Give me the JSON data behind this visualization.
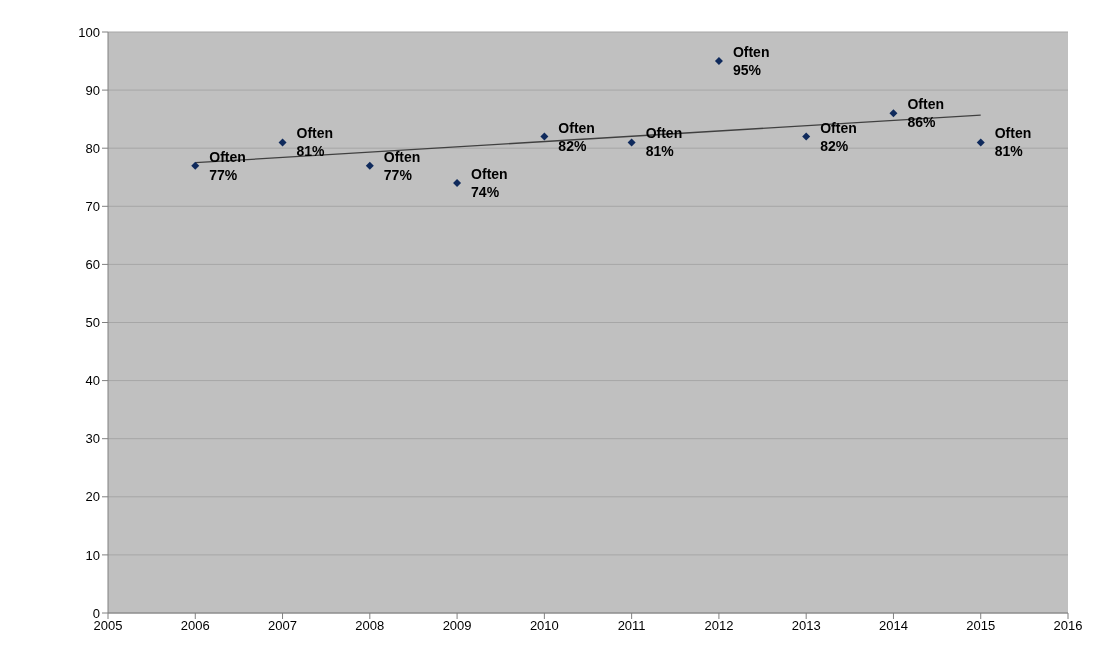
{
  "chart_data": {
    "type": "scatter",
    "x": [
      2006,
      2007,
      2008,
      2009,
      2010,
      2011,
      2012,
      2013,
      2014,
      2015
    ],
    "series": [
      {
        "color": "#0f2a5c",
        "marker": "diamond",
        "values": [
          77,
          81,
          77,
          74,
          82,
          81,
          95,
          82,
          86,
          81
        ],
        "value_labels": [
          "Often\n77%",
          "Often\n81%",
          "Often\n77%",
          "Often\n74%",
          "Often\n82%",
          "Often\n81%",
          "Often\n95%",
          "Often\n82%",
          "Often\n86%",
          "Often\n81%"
        ]
      },
      {
        "type": "line",
        "color": "#404040",
        "x": [
          2006,
          2015
        ],
        "values": [
          77.5,
          85.7
        ]
      }
    ],
    "xlim": [
      2005,
      2016
    ],
    "xticks": [
      2005,
      2006,
      2007,
      2008,
      2009,
      2010,
      2011,
      2012,
      2013,
      2014,
      2015,
      2016
    ],
    "ylim": [
      0,
      100
    ],
    "yticks": [
      0,
      10,
      20,
      30,
      40,
      50,
      60,
      70,
      80,
      90,
      100
    ],
    "grid": "y"
  }
}
